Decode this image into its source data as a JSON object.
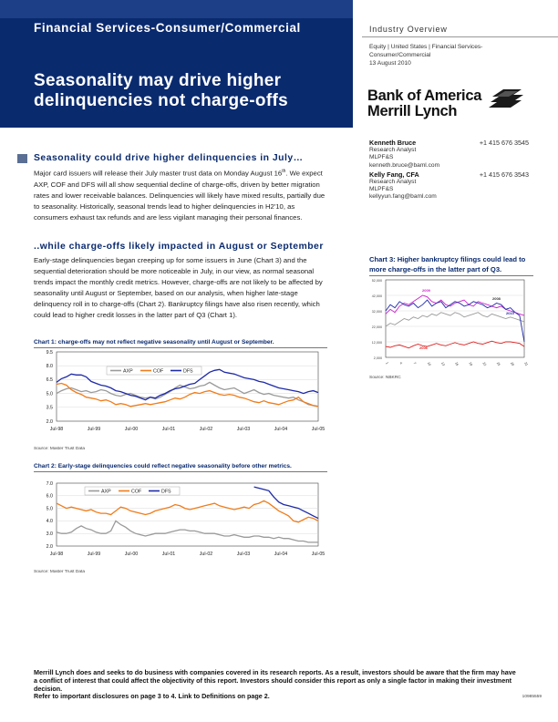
{
  "header": {
    "sector": "Financial Services-Consumer/Commercial",
    "headline": "Seasonality may drive higher delinquencies not charge-offs",
    "industry_title": "Industry Overview",
    "meta_lines": [
      "Equity | United States | Financial Services-",
      "Consumer/Commercial",
      "13 August 2010"
    ],
    "brand_line1": "Bank of America",
    "brand_line2": "Merrill Lynch"
  },
  "analysts": [
    {
      "name": "Kenneth Bruce",
      "phone": "+1 415 676 3545",
      "title": "Research Analyst",
      "firm": "MLPF&S",
      "email": "kenneth.bruce@baml.com"
    },
    {
      "name": "Kelly Fang, CFA",
      "phone": "+1 415 676 3543",
      "title": "Research Analyst",
      "firm": "MLPF&S",
      "email": "kellyyun.fang@baml.com"
    }
  ],
  "section1": {
    "heading": "Seasonality could drive higher delinquencies in July…",
    "text_before": "Major card issuers will release their July master trust data on Monday August 16",
    "sup": "th",
    "text_after": ". We expect AXP, COF and DFS will all show sequential decline of charge-offs, driven by better migration rates and lower receivable balances. Delinquencies will likely have mixed results, partially due to seasonality. Historically, seasonal trends lead to higher delinquencies in H2'10, as consumers exhaust tax refunds and are less vigilant managing their personal finances."
  },
  "section2": {
    "heading": "..while charge-offs likely impacted in August or September",
    "text": "Early-stage delinquencies began creeping up for some issuers in June (Chart 3) and the sequential deterioration should be more noticeable in July, in our view, as normal seasonal trends impact the monthly credit metrics. However, charge-offs are not likely to be affected by seasonality until August or September, based on our analysis, when higher late-stage delinquency roll in to charge-offs (Chart 2). Bankruptcy filings have also risen recently, which could lead to higher credit losses in the latter part of Q3 (Chart 1)."
  },
  "charts": {
    "chart1_title": "Chart 1: charge-offs may not reflect negative seasonality until August or September.",
    "chart1_source": "Source: Master Trust Data",
    "chart2_title": "Chart 2: Early-stage delinquencies could reflect negative seasonality before other metrics.",
    "chart2_source": "Source: Master Trust Data",
    "chart3_title": "Chart 3: Higher bankruptcy filings could lead to more charge-offs in the latter part of Q3.",
    "chart3_source": "Source: NBKRC"
  },
  "chart_data": [
    {
      "id": "chart1",
      "type": "line",
      "x_ticks": [
        "Jul-98",
        "Jul-99",
        "Jul-00",
        "Jul-01",
        "Jul-02",
        "Jul-03",
        "Jul-04",
        "Jul-05"
      ],
      "ylim": [
        2.0,
        9.5
      ],
      "y_ticks": [
        "2.0",
        "3.5",
        "5.0",
        "6.5",
        "8.0",
        "9.5"
      ],
      "series": [
        {
          "name": "AXP",
          "color": "#9a9a9a",
          "values": [
            5.0,
            5.3,
            5.5,
            5.6,
            5.4,
            5.2,
            5.3,
            5.1,
            5.2,
            5.4,
            5.3,
            5.0,
            4.8,
            4.7,
            4.9,
            5.0,
            4.8,
            4.6,
            4.5,
            4.6,
            4.4,
            4.6,
            4.9,
            5.2,
            5.6,
            5.9,
            5.7,
            5.5,
            5.6,
            5.8,
            5.9,
            6.2,
            5.9,
            5.6,
            5.4,
            5.5,
            5.6,
            5.3,
            5.0,
            5.2,
            5.4,
            5.1,
            4.9,
            5.0,
            4.8,
            4.7,
            4.6,
            4.5,
            4.6,
            4.3,
            4.1,
            3.8,
            3.7,
            3.6
          ]
        },
        {
          "name": "COF",
          "color": "#f07c1a",
          "values": [
            6.0,
            6.1,
            5.9,
            5.4,
            5.1,
            4.9,
            4.6,
            4.5,
            4.4,
            4.2,
            4.3,
            4.1,
            3.8,
            3.9,
            3.8,
            3.6,
            3.7,
            3.8,
            3.9,
            3.8,
            3.9,
            4.0,
            4.1,
            4.3,
            4.5,
            4.4,
            4.6,
            4.9,
            5.1,
            5.0,
            5.2,
            5.3,
            5.1,
            4.9,
            4.8,
            4.9,
            4.8,
            4.6,
            4.5,
            4.3,
            4.1,
            4.0,
            4.2,
            4.0,
            3.9,
            3.8,
            4.0,
            4.2,
            4.3,
            4.6,
            4.1,
            3.9,
            3.7,
            3.6
          ]
        },
        {
          "name": "DFS",
          "color": "#1e2aa8",
          "values": [
            6.2,
            6.6,
            6.8,
            7.1,
            7.0,
            7.0,
            6.8,
            6.3,
            6.1,
            5.9,
            5.8,
            5.6,
            5.3,
            5.2,
            5.0,
            4.8,
            4.7,
            4.5,
            4.3,
            4.6,
            4.5,
            4.8,
            5.0,
            5.3,
            5.5,
            5.6,
            5.8,
            6.0,
            6.1,
            6.5,
            6.9,
            7.3,
            7.5,
            7.6,
            7.3,
            7.2,
            7.1,
            6.9,
            6.7,
            6.6,
            6.5,
            6.3,
            6.2,
            6.0,
            5.8,
            5.6,
            5.5,
            5.4,
            5.3,
            5.2,
            5.0,
            5.2,
            5.3,
            5.1
          ]
        }
      ]
    },
    {
      "id": "chart2",
      "type": "line",
      "x_ticks": [
        "Jul-98",
        "Jul-99",
        "Jul-00",
        "Jul-01",
        "Jul-02",
        "Jul-03",
        "Jul-04",
        "Jul-05"
      ],
      "ylim": [
        2.0,
        7.0
      ],
      "y_ticks": [
        "2.0",
        "3.0",
        "4.0",
        "5.0",
        "6.0",
        "7.0"
      ],
      "series": [
        {
          "name": "AXP",
          "color": "#9a9a9a",
          "values": [
            3.1,
            3.0,
            3.0,
            3.1,
            3.4,
            3.6,
            3.4,
            3.3,
            3.1,
            3.0,
            3.0,
            3.2,
            4.0,
            3.7,
            3.5,
            3.2,
            3.0,
            2.9,
            2.8,
            2.9,
            3.0,
            3.0,
            3.0,
            3.1,
            3.2,
            3.3,
            3.3,
            3.2,
            3.2,
            3.1,
            3.0,
            3.0,
            3.0,
            2.9,
            2.8,
            2.8,
            2.9,
            2.8,
            2.7,
            2.7,
            2.8,
            2.8,
            2.7,
            2.7,
            2.6,
            2.7,
            2.6,
            2.6,
            2.5,
            2.4,
            2.4,
            2.3,
            2.3,
            2.3
          ]
        },
        {
          "name": "COF",
          "color": "#f07c1a",
          "values": [
            5.4,
            5.2,
            5.0,
            5.1,
            5.0,
            4.9,
            4.8,
            4.9,
            4.7,
            4.6,
            4.6,
            4.5,
            4.8,
            5.1,
            5.0,
            4.8,
            4.7,
            4.6,
            4.5,
            4.6,
            4.8,
            4.9,
            5.0,
            5.1,
            5.3,
            5.2,
            5.0,
            4.9,
            5.0,
            5.1,
            5.2,
            5.3,
            5.4,
            5.2,
            5.1,
            5.0,
            4.9,
            5.0,
            5.1,
            5.0,
            5.3,
            5.4,
            5.6,
            5.4,
            5.1,
            4.8,
            4.6,
            4.4,
            4.0,
            3.9,
            4.1,
            4.3,
            4.2,
            4.0
          ]
        },
        {
          "name": "DFS",
          "color": "#1e2aa8",
          "values": [
            null,
            null,
            null,
            null,
            null,
            null,
            null,
            null,
            null,
            null,
            null,
            null,
            null,
            null,
            null,
            null,
            null,
            null,
            null,
            null,
            null,
            null,
            null,
            null,
            null,
            null,
            null,
            null,
            null,
            null,
            null,
            null,
            null,
            null,
            null,
            null,
            null,
            null,
            null,
            null,
            6.7,
            6.6,
            6.5,
            6.4,
            5.9,
            5.5,
            5.3,
            5.2,
            5.1,
            5.0,
            4.8,
            4.6,
            4.4,
            4.2
          ]
        }
      ]
    },
    {
      "id": "chart3",
      "type": "line",
      "ylim": [
        2000,
        52000
      ],
      "y_ticks": [
        "2,000",
        "12,000",
        "22,000",
        "32,000",
        "42,000",
        "52,000"
      ],
      "x_ticks": [
        "1",
        "4",
        "7",
        "10",
        "13",
        "16",
        "19",
        "22",
        "25",
        "28",
        "31"
      ],
      "series": [
        {
          "name": "2006",
          "color": "#e02020",
          "values": [
            9000,
            8500,
            9500,
            10000,
            9000,
            8000,
            9500,
            10500,
            9500,
            9000,
            10000,
            11000,
            10000,
            9500,
            10500,
            11500,
            10500,
            10000,
            11000,
            12000,
            11000,
            10500,
            11500,
            12500,
            11500,
            11000,
            12000,
            12000,
            11500,
            11000,
            9000
          ]
        },
        {
          "name": "2008",
          "color": "#9a9a9a",
          "values": [
            22000,
            24000,
            23000,
            25000,
            27000,
            26000,
            28000,
            27000,
            29000,
            28000,
            30000,
            29000,
            31000,
            30000,
            29000,
            31000,
            30000,
            28000,
            29000,
            30000,
            31000,
            29000,
            28000,
            30000,
            29000,
            28000,
            27000,
            28000,
            27000,
            26000,
            25000
          ]
        },
        {
          "name": "2009",
          "color": "#cc22cc",
          "values": [
            30000,
            33000,
            31000,
            35000,
            37000,
            36000,
            38000,
            40000,
            42000,
            41000,
            38000,
            37000,
            39000,
            36000,
            35000,
            37000,
            38000,
            39000,
            36000,
            35000,
            38000,
            37000,
            36000,
            35000,
            34000,
            35000,
            33000,
            32000,
            31000,
            30000,
            29000
          ]
        },
        {
          "name": "2010",
          "color": "#1e2aa8",
          "values": [
            32000,
            36000,
            34000,
            38000,
            36000,
            35000,
            37000,
            34000,
            36000,
            39000,
            35000,
            37000,
            38000,
            34000,
            36000,
            38000,
            37000,
            35000,
            36000,
            38000,
            37000,
            36000,
            34000,
            35000,
            37000,
            36000,
            33000,
            34000,
            31000,
            29000,
            12000
          ]
        }
      ],
      "annotations": [
        {
          "text": "2006",
          "color": "#e02020"
        },
        {
          "text": "2008",
          "color": "#333333"
        },
        {
          "text": "2009",
          "color": "#cc22cc"
        },
        {
          "text": "2010",
          "color": "#1e2aa8"
        }
      ]
    }
  ],
  "footer": {
    "disclaimer": "Merrill Lynch does and seeks to do business with companies covered in its research reports. As a result, investors should be aware that the firm may have a conflict of interest that could affect the objectivity of this report. Investors should consider this report as only a single factor in making their investment decision.",
    "refer": "Refer to important disclosures on page 3 to 4.  Link to Definitions on page 2.",
    "code": "10985559"
  }
}
